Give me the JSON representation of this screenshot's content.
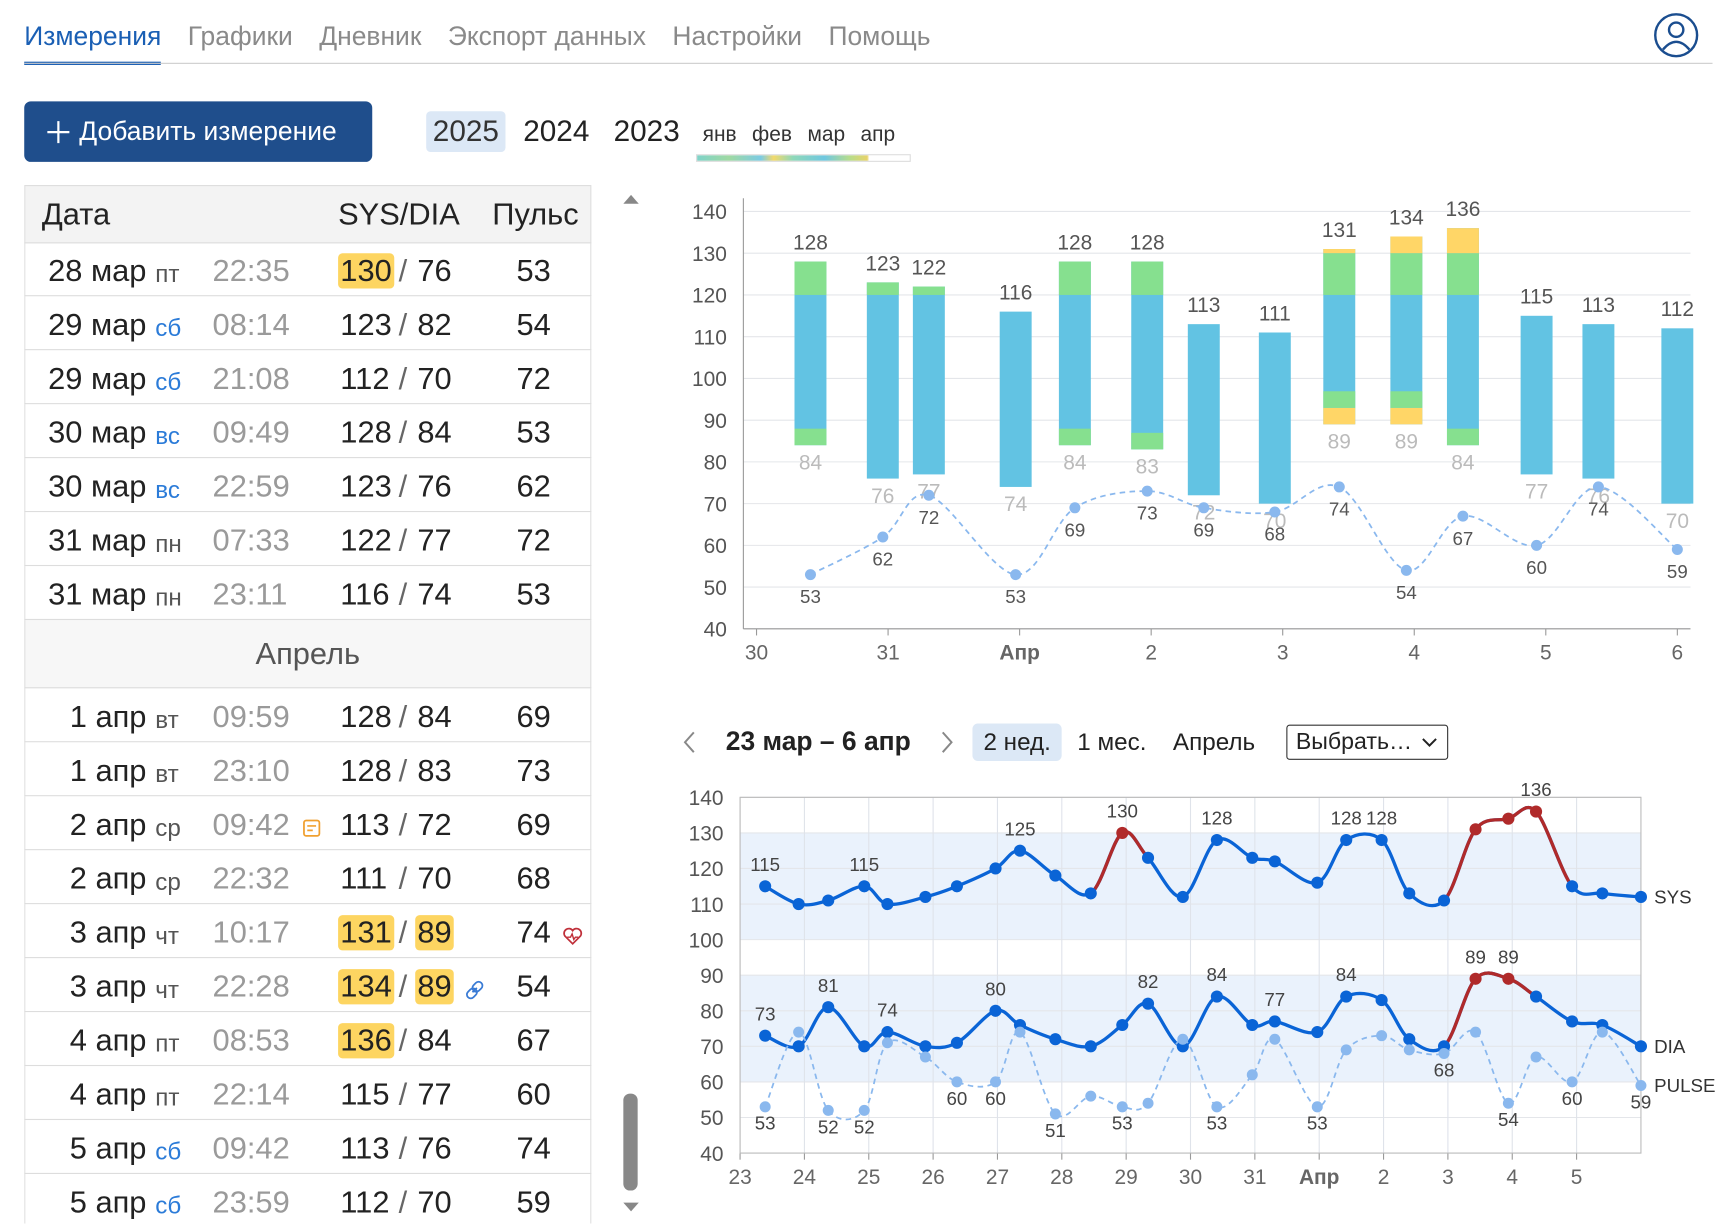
{
  "nav": {
    "tabs": [
      "Измерения",
      "Графики",
      "Дневник",
      "Экспорт данных",
      "Настройки",
      "Помощь"
    ],
    "active": 0
  },
  "add_button": "Добавить измерение",
  "years": {
    "items": [
      "2025",
      "2024",
      "2023"
    ],
    "active": 0
  },
  "months": [
    "янв",
    "фев",
    "мар",
    "апр"
  ],
  "table": {
    "columns": [
      "Дата",
      "SYS/DIA",
      "Пульс"
    ],
    "separator": "/",
    "sections": [
      {
        "rows": [
          {
            "date": "28 мар",
            "weekday": "пт",
            "time": "22:35",
            "sys": 130,
            "dia": 76,
            "pulse": 53
          },
          {
            "date": "29 мар",
            "weekday": "сб",
            "weekend": true,
            "time": "08:14",
            "sys": 123,
            "dia": 82,
            "pulse": 54
          },
          {
            "date": "29 мар",
            "weekday": "сб",
            "weekend": true,
            "time": "21:08",
            "sys": 112,
            "dia": 70,
            "pulse": 72
          },
          {
            "date": "30 мар",
            "weekday": "вс",
            "weekend": true,
            "time": "09:49",
            "sys": 128,
            "dia": 84,
            "pulse": 53
          },
          {
            "date": "30 мар",
            "weekday": "вс",
            "weekend": true,
            "time": "22:59",
            "sys": 123,
            "dia": 76,
            "pulse": 62
          },
          {
            "date": "31 мар",
            "weekday": "пн",
            "time": "07:33",
            "sys": 122,
            "dia": 77,
            "pulse": 72
          },
          {
            "date": "31 мар",
            "weekday": "пн",
            "time": "23:11",
            "sys": 116,
            "dia": 74,
            "pulse": 53
          }
        ]
      },
      {
        "title": "Апрель",
        "rows": [
          {
            "date": "1 апр",
            "weekday": "вт",
            "time": "09:59",
            "sys": 128,
            "dia": 84,
            "pulse": 69
          },
          {
            "date": "1 апр",
            "weekday": "вт",
            "time": "23:10",
            "sys": 128,
            "dia": 83,
            "pulse": 73
          },
          {
            "date": "2 апр",
            "weekday": "ср",
            "time": "09:42",
            "sys": 113,
            "dia": 72,
            "pulse": 69
          },
          {
            "date": "2 апр",
            "weekday": "ср",
            "time": "22:32",
            "sys": 111,
            "dia": 70,
            "pulse": 68
          },
          {
            "date": "3 апр",
            "weekday": "чт",
            "time": "10:17",
            "sys": 131,
            "dia": 89,
            "pulse": 74
          },
          {
            "date": "3 апр",
            "weekday": "чт",
            "time": "22:28",
            "sys": 134,
            "dia": 89,
            "pulse": 54
          },
          {
            "date": "4 апр",
            "weekday": "пт",
            "time": "08:53",
            "sys": 136,
            "dia": 84,
            "pulse": 67
          },
          {
            "date": "4 апр",
            "weekday": "пт",
            "time": "22:14",
            "sys": 115,
            "dia": 77,
            "pulse": 60
          },
          {
            "date": "5 апр",
            "weekday": "сб",
            "weekend": true,
            "time": "09:42",
            "sys": 113,
            "dia": 76,
            "pulse": 74
          },
          {
            "date": "5 апр",
            "weekday": "сб",
            "weekend": true,
            "time": "23:59",
            "sys": 112,
            "dia": 70,
            "pulse": 59
          }
        ]
      }
    ]
  },
  "period": {
    "label": "23 мар – 6 апр",
    "ranges": [
      "2 нед.",
      "1 мес.",
      "Апрель"
    ],
    "active": 0,
    "select": "Выбрать…"
  },
  "chart_data": [
    {
      "type": "range-bar",
      "x": [
        30.41,
        30.96,
        31.31,
        31.97,
        32.42,
        32.97,
        33.4,
        33.94,
        34.43,
        34.94,
        35.37,
        35.93,
        36.4,
        37.0
      ],
      "series": [
        {
          "values": [
            128,
            123,
            122,
            116,
            128,
            128,
            113,
            111,
            131,
            134,
            136,
            115,
            113,
            112
          ],
          "color": "#555555"
        },
        {
          "values": [
            84,
            76,
            77,
            74,
            84,
            83,
            72,
            70,
            89,
            89,
            84,
            77,
            76,
            70
          ],
          "color": "#bbbbbb"
        },
        {
          "values": [
            53,
            62,
            72,
            53,
            69,
            73,
            69,
            68,
            74,
            54,
            67,
            60,
            74,
            59
          ],
          "color": "#8ab8ee"
        }
      ],
      "bar_color": "#62c3e3",
      "zones": [
        {
          "from": 120,
          "color": "#86e08f"
        },
        {
          "from": 130,
          "color": "#ffd667"
        }
      ],
      "dia_zones": [
        {
          "from": 80,
          "color": "#86e08f"
        },
        {
          "from": 85,
          "color": "#ffd667"
        }
      ],
      "xlim": [
        29.9,
        37.1
      ],
      "ylim": [
        40,
        140
      ],
      "xticks": [
        30,
        31,
        {
          "value": 32,
          "label": "Апр"
        },
        {
          "value": 33,
          "label": "2"
        },
        {
          "value": 34,
          "label": "3"
        },
        {
          "value": 35,
          "label": "4"
        },
        {
          "value": 36,
          "label": "5"
        },
        {
          "value": 37,
          "label": "6"
        }
      ],
      "yticks": [
        40,
        50,
        60,
        70,
        80,
        90,
        100,
        110,
        120,
        130,
        140
      ],
      "grid": true
    },
    {
      "type": "line",
      "x": [
        23.39,
        23.91,
        24.37,
        24.93,
        25.29,
        25.88,
        26.37,
        26.97,
        27.35,
        27.9,
        28.45,
        28.94,
        29.34,
        29.88,
        30.41,
        30.96,
        31.31,
        31.97,
        32.42,
        32.97,
        33.4,
        33.94,
        34.43,
        34.94,
        35.37,
        35.93,
        36.4,
        37.0
      ],
      "series": [
        {
          "name": "SYS",
          "color": "#0a64d6",
          "alert_above": 130,
          "alert_color": "#b02a2a",
          "values": [
            115,
            110,
            111,
            115,
            110,
            112,
            115,
            120,
            125,
            118,
            113,
            130,
            123,
            112,
            128,
            123,
            122,
            116,
            128,
            128,
            113,
            111,
            131,
            134,
            136,
            115,
            113,
            112
          ]
        },
        {
          "name": "DIA",
          "color": "#0a64d6",
          "alert_above": 85,
          "alert_color": "#b02a2a",
          "values": [
            73,
            70,
            81,
            70,
            74,
            70,
            71,
            80,
            76,
            72,
            70,
            76,
            82,
            70,
            84,
            76,
            77,
            74,
            84,
            83,
            72,
            70,
            89,
            89,
            84,
            77,
            76,
            70
          ]
        },
        {
          "name": "PULSE",
          "color": "#8ab8ee",
          "dashed": true,
          "values": [
            53,
            74,
            52,
            52,
            71,
            67,
            60,
            60,
            74,
            51,
            56,
            53,
            54,
            72,
            53,
            62,
            72,
            53,
            69,
            73,
            69,
            68,
            74,
            54,
            67,
            60,
            74,
            59
          ]
        }
      ],
      "bands": [
        [
          100,
          130
        ],
        [
          60,
          90
        ]
      ],
      "band_color": "#eaf2fc",
      "xlim": [
        23,
        37
      ],
      "ylim": [
        40,
        140
      ],
      "xticks": [
        23,
        24,
        25,
        26,
        27,
        28,
        29,
        30,
        31,
        {
          "value": 32,
          "label": "Апр"
        },
        {
          "value": 33,
          "label": "2"
        },
        {
          "value": 34,
          "label": "3"
        },
        {
          "value": 35,
          "label": "4"
        },
        {
          "value": 36,
          "label": "5"
        }
      ],
      "yticks": [
        40,
        50,
        60,
        70,
        80,
        90,
        100,
        110,
        120,
        130,
        140
      ],
      "grid": true
    }
  ]
}
